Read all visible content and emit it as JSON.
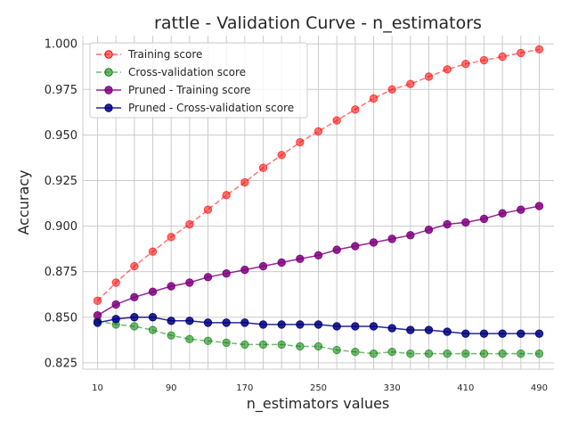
{
  "chart_data": {
    "type": "line",
    "title": "rattle - Validation Curve - n_estimators",
    "xlabel": "n_estimators values",
    "ylabel": "Accuracy",
    "x": [
      10,
      30,
      50,
      70,
      90,
      110,
      130,
      150,
      170,
      190,
      210,
      230,
      250,
      270,
      290,
      310,
      330,
      350,
      370,
      390,
      410,
      430,
      450,
      470,
      490
    ],
    "xticks": [
      10,
      90,
      170,
      250,
      330,
      410,
      490
    ],
    "yticks": [
      "0.825",
      "0.850",
      "0.875",
      "0.900",
      "0.925",
      "0.950",
      "0.975",
      "1.000"
    ],
    "xlim": [
      -6,
      506
    ],
    "ylim": [
      0.8215,
      1.0045
    ],
    "grid": true,
    "legend": "top-left",
    "series": [
      {
        "name": "Training score",
        "color": "#ff0000",
        "dash": true,
        "alpha": 0.55,
        "values": [
          0.859,
          0.869,
          0.878,
          0.886,
          0.894,
          0.901,
          0.909,
          0.917,
          0.924,
          0.932,
          0.939,
          0.946,
          0.952,
          0.958,
          0.964,
          0.97,
          0.975,
          0.978,
          0.982,
          0.986,
          0.989,
          0.991,
          0.993,
          0.995,
          0.997
        ]
      },
      {
        "name": "Cross-validation score",
        "color": "#008000",
        "dash": true,
        "alpha": 0.55,
        "values": [
          0.848,
          0.846,
          0.845,
          0.843,
          0.84,
          0.838,
          0.837,
          0.836,
          0.835,
          0.835,
          0.835,
          0.834,
          0.834,
          0.832,
          0.831,
          0.83,
          0.831,
          0.83,
          0.83,
          0.83,
          0.83,
          0.83,
          0.83,
          0.83,
          0.83
        ]
      },
      {
        "name": "Pruned - Training score",
        "color": "#800080",
        "dash": false,
        "alpha": 0.85,
        "values": [
          0.851,
          0.857,
          0.861,
          0.864,
          0.867,
          0.869,
          0.872,
          0.874,
          0.876,
          0.878,
          0.88,
          0.882,
          0.884,
          0.887,
          0.889,
          0.891,
          0.893,
          0.895,
          0.898,
          0.901,
          0.902,
          0.904,
          0.907,
          0.909,
          0.911
        ]
      },
      {
        "name": "Pruned - Cross-validation score",
        "color": "#000080",
        "dash": false,
        "alpha": 0.85,
        "values": [
          0.847,
          0.849,
          0.85,
          0.85,
          0.848,
          0.848,
          0.847,
          0.847,
          0.847,
          0.846,
          0.846,
          0.846,
          0.846,
          0.845,
          0.845,
          0.845,
          0.844,
          0.843,
          0.843,
          0.842,
          0.841,
          0.841,
          0.841,
          0.841,
          0.841
        ]
      }
    ]
  }
}
